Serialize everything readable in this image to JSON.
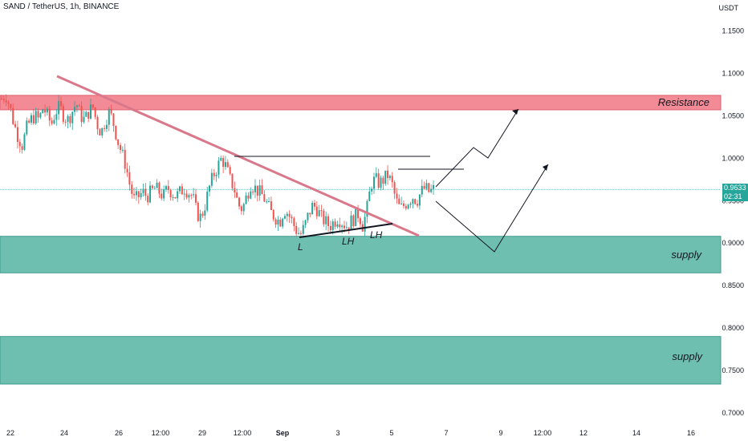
{
  "header": {
    "title": "SAND / TetherUS, 1h, BINANCE",
    "currency": "USDT"
  },
  "price_tag": {
    "price": "0.9633",
    "countdown": "02:31"
  },
  "colors": {
    "resistance_fill": "#f28b95",
    "supply_fill": "#6fbfb1",
    "trendline": "#d9788a",
    "bull": "#26a69a",
    "bear": "#ef5350",
    "current_price_line": "#26a69a"
  },
  "chart_data": {
    "type": "candlestick",
    "symbol": "SAND / TetherUS",
    "timeframe": "1h",
    "exchange": "BINANCE",
    "y_axis": {
      "ylim": [
        0.7,
        1.17
      ],
      "ticks": [
        "1.1500",
        "1.1000",
        "1.0500",
        "1.0000",
        "0.9500",
        "0.9000",
        "0.8500",
        "0.8000",
        "0.7500",
        "0.7000"
      ]
    },
    "x_axis": {
      "ticks": [
        "22",
        "24",
        "26",
        "12:00",
        "29",
        "12:00",
        "Sep",
        "3",
        "5",
        "7",
        "9",
        "12:00",
        "12",
        "14",
        "16"
      ]
    },
    "current_price": 0.9633,
    "zones": [
      {
        "label": "Resistance",
        "top": 1.074,
        "bottom": 1.057,
        "kind": "resistance"
      },
      {
        "label": "supply",
        "top": 0.908,
        "bottom": 0.865,
        "kind": "supply"
      },
      {
        "label": "supply",
        "top": 0.79,
        "bottom": 0.734,
        "kind": "supply"
      }
    ],
    "pivot_labels": [
      {
        "text": "L",
        "price": 0.893
      },
      {
        "text": "LH",
        "price": 0.899
      },
      {
        "text": "LH",
        "price": 0.908
      }
    ],
    "close_path": [
      1.07,
      1.075,
      1.06,
      1.04,
      1.025,
      1.015,
      1.035,
      1.045,
      1.05,
      1.045,
      1.06,
      1.05,
      1.04,
      1.055,
      1.06,
      1.05,
      1.045,
      1.055,
      1.065,
      1.05,
      1.045,
      1.055,
      1.06,
      1.04,
      1.03,
      1.045,
      1.055,
      1.04,
      1.02,
      1.005,
      0.99,
      0.965,
      0.95,
      0.955,
      0.96,
      0.955,
      0.96,
      0.965,
      0.96,
      0.955,
      0.965,
      0.96,
      0.955,
      0.96,
      0.965,
      0.96,
      0.955,
      0.935,
      0.93,
      0.945,
      0.965,
      0.98,
      0.99,
      1.0,
      0.99,
      0.975,
      0.965,
      0.945,
      0.94,
      0.955,
      0.97,
      0.965,
      0.96,
      0.955,
      0.945,
      0.935,
      0.93,
      0.925,
      0.94,
      0.935,
      0.925,
      0.915,
      0.91,
      0.92,
      0.935,
      0.945,
      0.94,
      0.93,
      0.925,
      0.92,
      0.925,
      0.93,
      0.925,
      0.92,
      0.925,
      0.93,
      0.935,
      0.92,
      0.94,
      0.97,
      0.975,
      0.97,
      0.975,
      0.98,
      0.97,
      0.95,
      0.94,
      0.945,
      0.95,
      0.955,
      0.95,
      0.96,
      0.965,
      0.96,
      0.963
    ]
  },
  "annotations_text": {
    "resistance": "Resistance",
    "supply1": "supply",
    "supply2": "supply",
    "low": "L",
    "lh1": "LH",
    "lh2": "LH"
  }
}
